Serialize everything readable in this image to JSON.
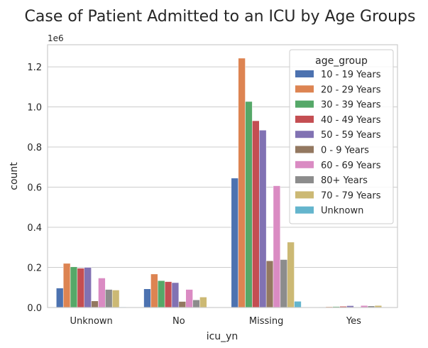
{
  "chart_data": {
    "type": "bar",
    "title": "Case of Patient Admitted to an ICU by Age Groups",
    "xlabel": "icu_yn",
    "ylabel": "count",
    "y_multiplier_label": "1e6",
    "ylim": [
      0,
      1.31
    ],
    "yticks": [
      0.0,
      0.2,
      0.4,
      0.6,
      0.8,
      1.0,
      1.2
    ],
    "ytick_labels": [
      "0.0",
      "0.2",
      "0.4",
      "0.6",
      "0.8",
      "1.0",
      "1.2"
    ],
    "grid": true,
    "legend_title": "age_group",
    "legend_position": "top-right",
    "categories": [
      "Unknown",
      "No",
      "Missing",
      "Yes"
    ],
    "series": [
      {
        "name": "10 - 19 Years",
        "color": "#4c72b0",
        "values": [
          0.097,
          0.093,
          0.645,
          0.002
        ]
      },
      {
        "name": "20 - 29 Years",
        "color": "#dd8452",
        "values": [
          0.22,
          0.167,
          1.243,
          0.004
        ]
      },
      {
        "name": "30 - 39 Years",
        "color": "#55a868",
        "values": [
          0.203,
          0.134,
          1.027,
          0.005
        ]
      },
      {
        "name": "40 - 49 Years",
        "color": "#c44e52",
        "values": [
          0.196,
          0.129,
          0.931,
          0.006
        ]
      },
      {
        "name": "50 - 59 Years",
        "color": "#8172b3",
        "values": [
          0.2,
          0.124,
          0.884,
          0.009
        ]
      },
      {
        "name": "0 - 9 Years",
        "color": "#937860",
        "values": [
          0.033,
          0.03,
          0.233,
          0.001
        ]
      },
      {
        "name": "60 - 69 Years",
        "color": "#da8bc3",
        "values": [
          0.147,
          0.09,
          0.607,
          0.01
        ]
      },
      {
        "name": "80+ Years",
        "color": "#8c8c8c",
        "values": [
          0.09,
          0.038,
          0.239,
          0.008
        ]
      },
      {
        "name": "70 - 79 Years",
        "color": "#ccb974",
        "values": [
          0.087,
          0.052,
          0.326,
          0.01
        ]
      },
      {
        "name": "Unknown",
        "color": "#64b5cd",
        "values": [
          0.003,
          0.002,
          0.031,
          0.0
        ]
      }
    ]
  }
}
